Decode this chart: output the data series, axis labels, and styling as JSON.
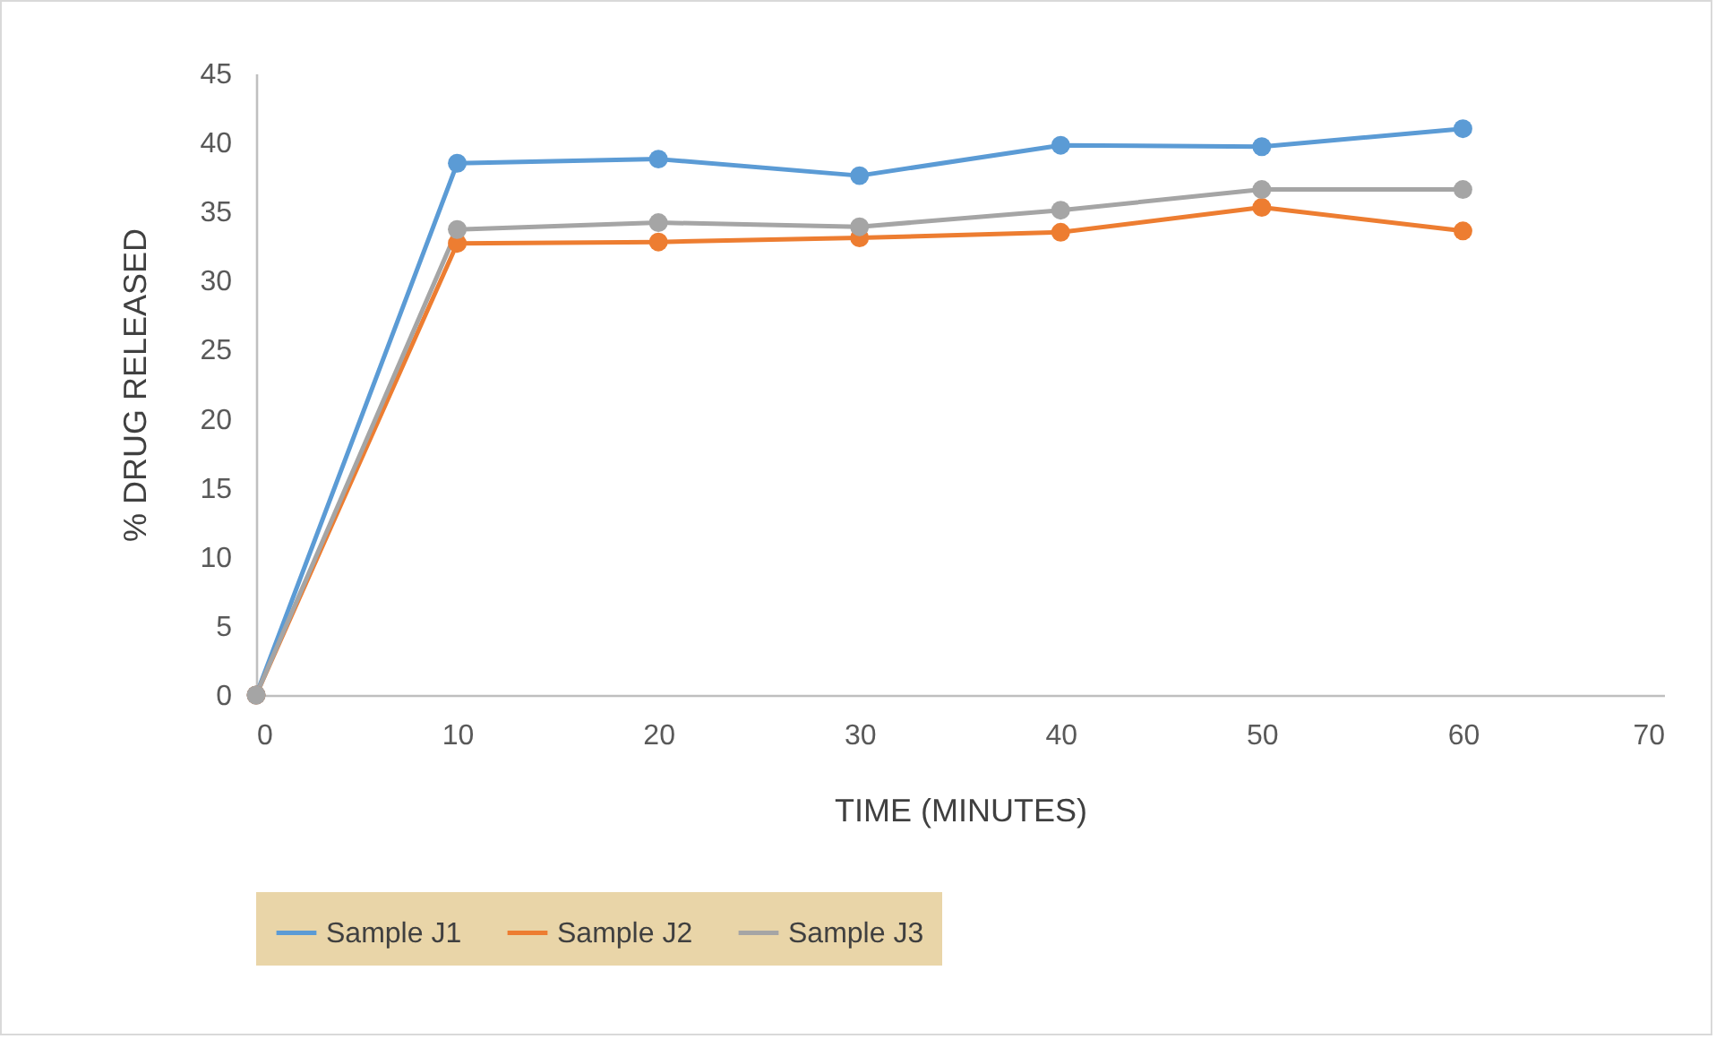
{
  "chart_data": {
    "type": "line",
    "xlabel": "TIME (MINUTES)",
    "ylabel": "% DRUG RELEASED",
    "x": [
      0,
      10,
      20,
      30,
      40,
      50,
      60
    ],
    "series": [
      {
        "name": "Sample J1",
        "color": "#5b9bd5",
        "values": [
          0,
          38.5,
          38.8,
          37.6,
          39.8,
          39.7,
          41.0
        ]
      },
      {
        "name": "Sample J2",
        "color": "#ed7d31",
        "values": [
          0,
          32.7,
          32.8,
          33.1,
          33.5,
          35.3,
          33.6
        ]
      },
      {
        "name": "Sample J3",
        "color": "#a5a5a5",
        "values": [
          0,
          33.7,
          34.2,
          33.9,
          35.1,
          36.6,
          36.6
        ]
      }
    ],
    "xlim": [
      0,
      70
    ],
    "xticks": [
      0,
      10,
      20,
      30,
      40,
      50,
      60,
      70
    ],
    "ylim": [
      0,
      45
    ],
    "yticks": [
      0,
      5,
      10,
      15,
      20,
      25,
      30,
      35,
      40,
      45
    ],
    "grid": false,
    "legend": "bottom",
    "marker": "circle",
    "line_style": "solid"
  }
}
